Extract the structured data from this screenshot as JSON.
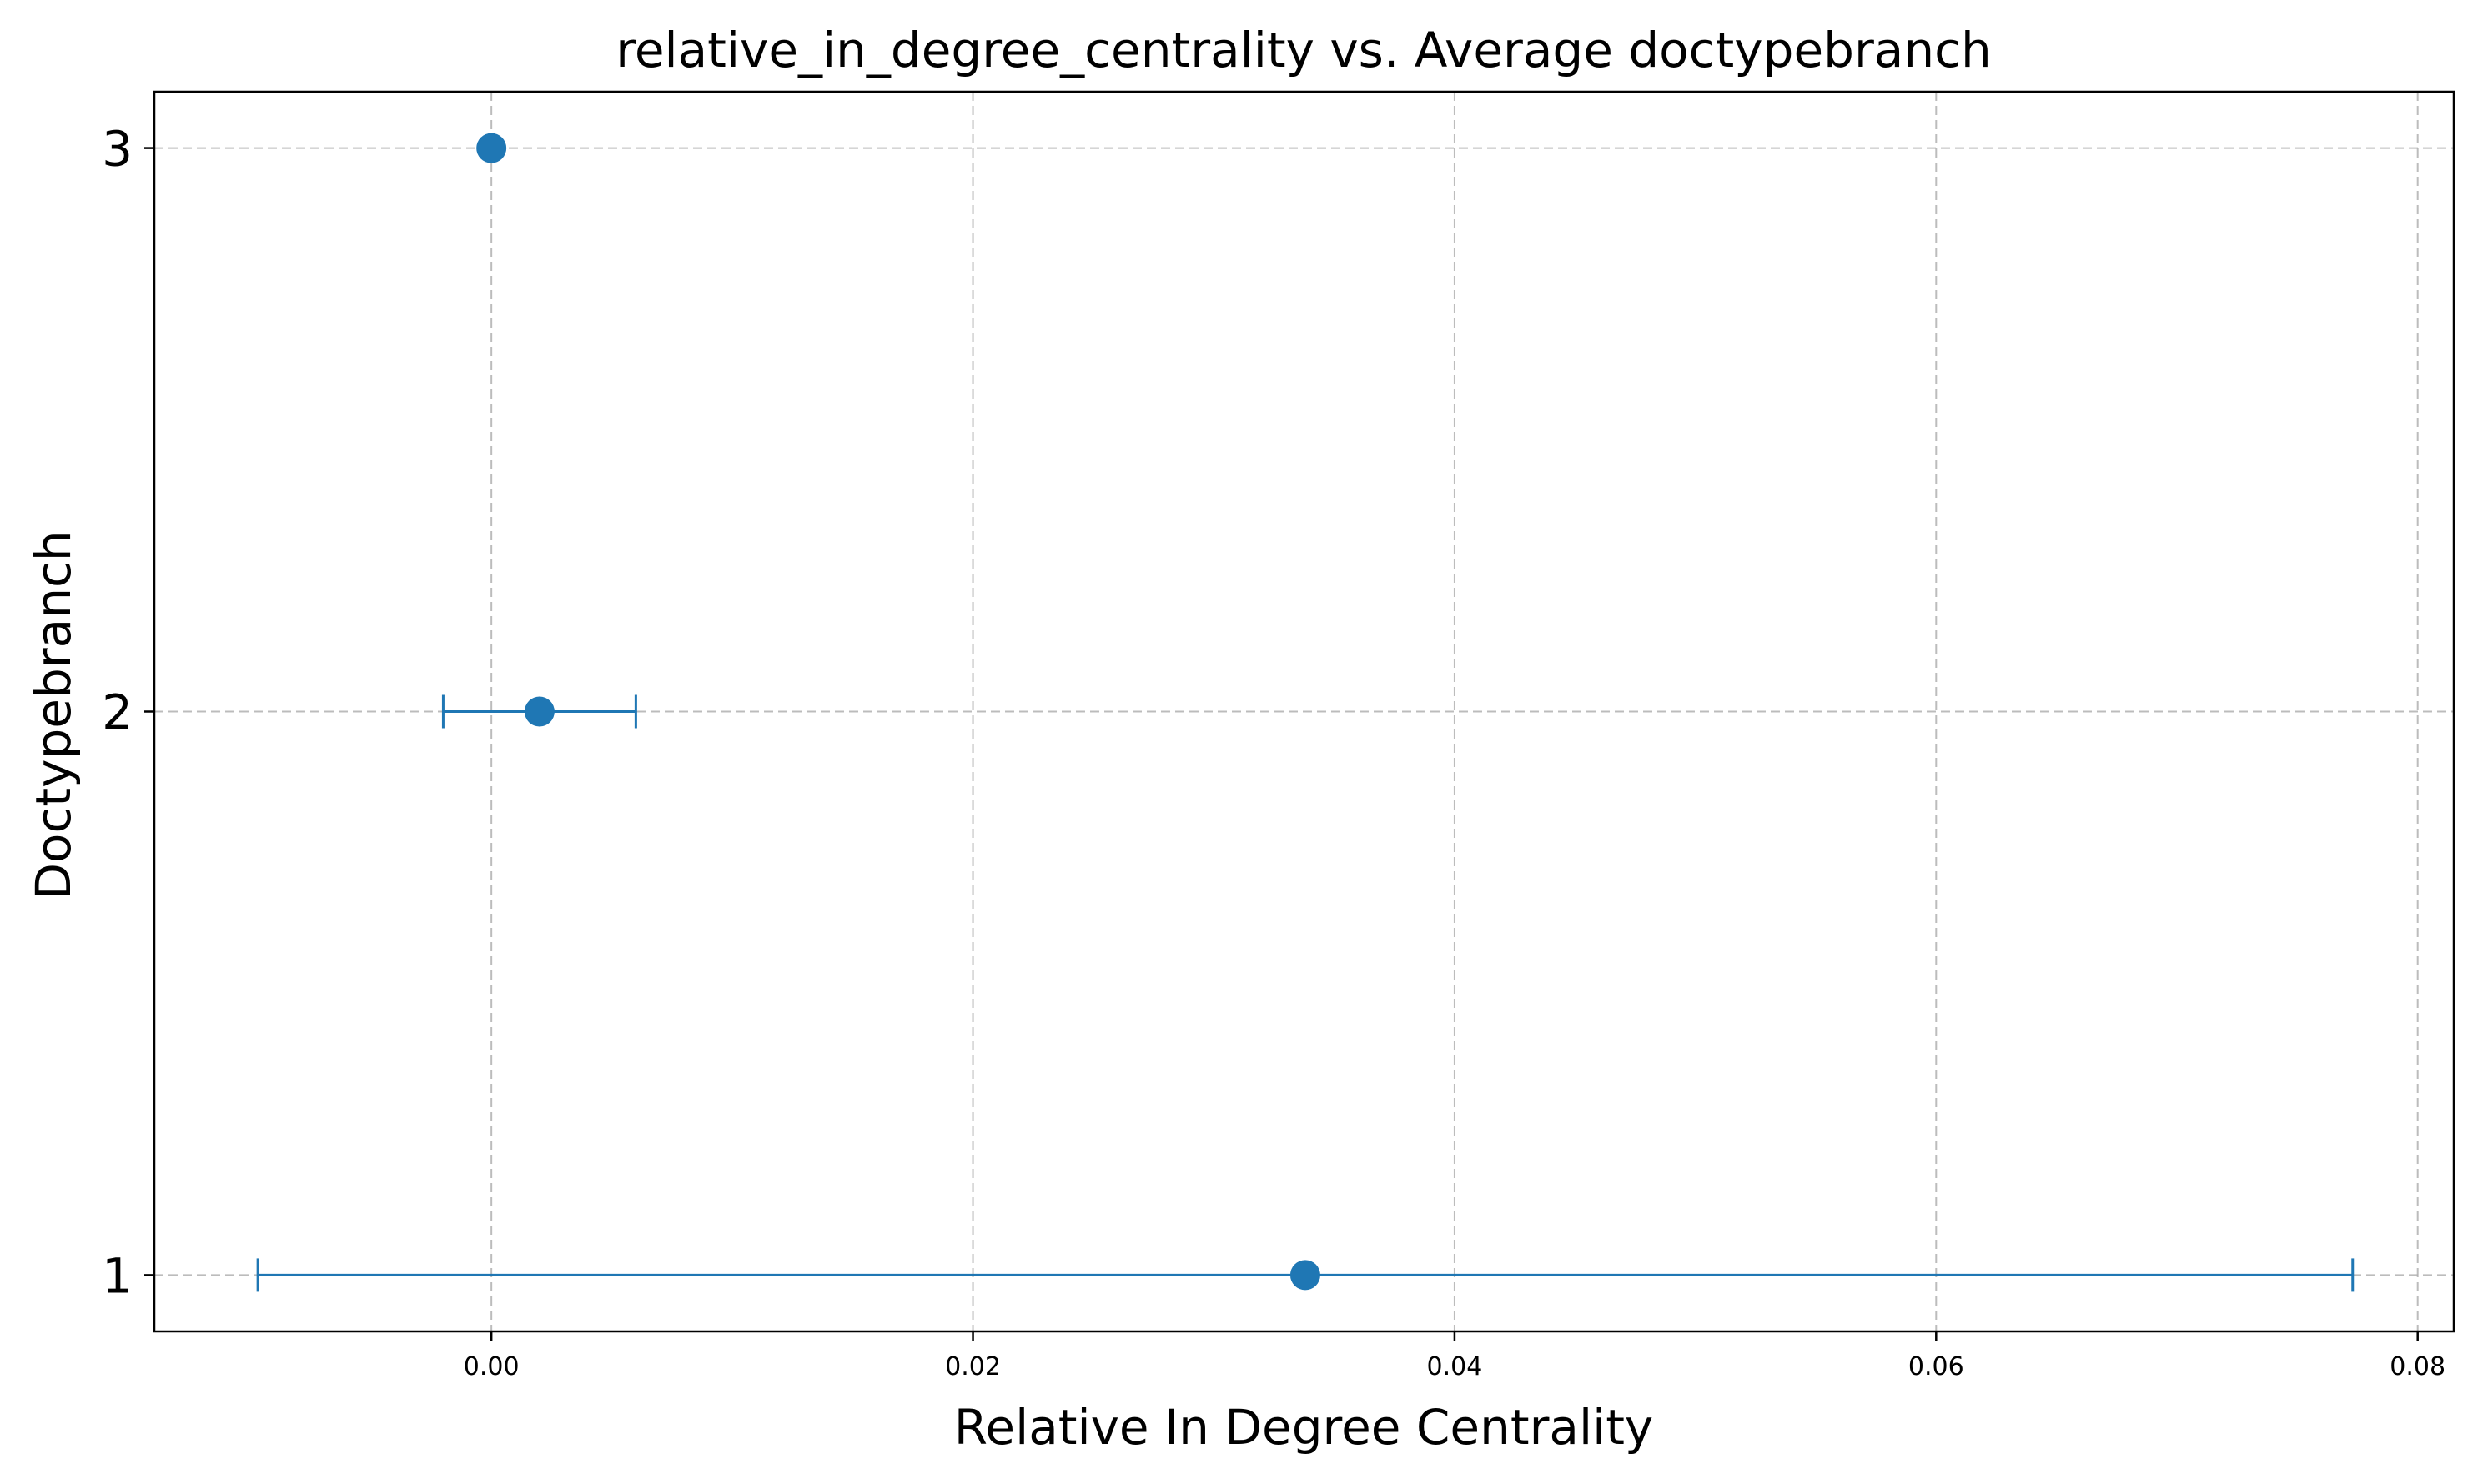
{
  "chart_data": {
    "type": "scatter",
    "title": "relative_in_degree_centrality vs. Average doctypebranch",
    "xlabel": "Relative In Degree Centrality",
    "ylabel": "Doctypebranch",
    "xlim": [
      -0.014,
      0.0815
    ],
    "ylim": [
      0.9,
      3.1
    ],
    "xticks": [
      0.0,
      0.02,
      0.04,
      0.06,
      0.08
    ],
    "xtick_labels": [
      "0.00",
      "0.02",
      "0.04",
      "0.06",
      "0.08"
    ],
    "yticks": [
      1,
      2,
      3
    ],
    "ytick_labels": [
      "1",
      "2",
      "3"
    ],
    "grid": true,
    "color": "#1f77b4",
    "points": [
      {
        "y": 1,
        "x": 0.0338,
        "xerr_low": -0.0097,
        "xerr_high": 0.0773
      },
      {
        "y": 2,
        "x": 0.002,
        "xerr_low": -0.002,
        "xerr_high": 0.006
      },
      {
        "y": 3,
        "x": 0.0,
        "xerr_low": 0.0,
        "xerr_high": 0.0
      }
    ]
  }
}
